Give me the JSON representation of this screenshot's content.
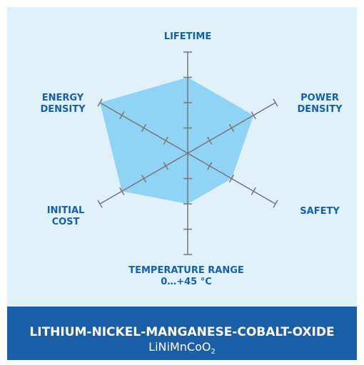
{
  "chart_data": {
    "type": "radar",
    "categories": [
      "LIFETIME",
      "POWER\nDENSITY",
      "SAFETY",
      "TEMPERATURE RANGE\n0…+45 °C",
      "INITIAL\nCOST",
      "ENERGY\nDENSITY"
    ],
    "values": [
      3,
      3,
      2,
      2,
      3,
      4
    ],
    "rlim": [
      0,
      4
    ],
    "rticks": [
      1,
      2,
      3,
      4
    ],
    "color": "#8fd4f5",
    "title": "LITHIUM-NICKEL-MANGANESE-COBALT-OXIDE",
    "formula": "LiNiMnCoO",
    "formula_subscript": "2"
  }
}
